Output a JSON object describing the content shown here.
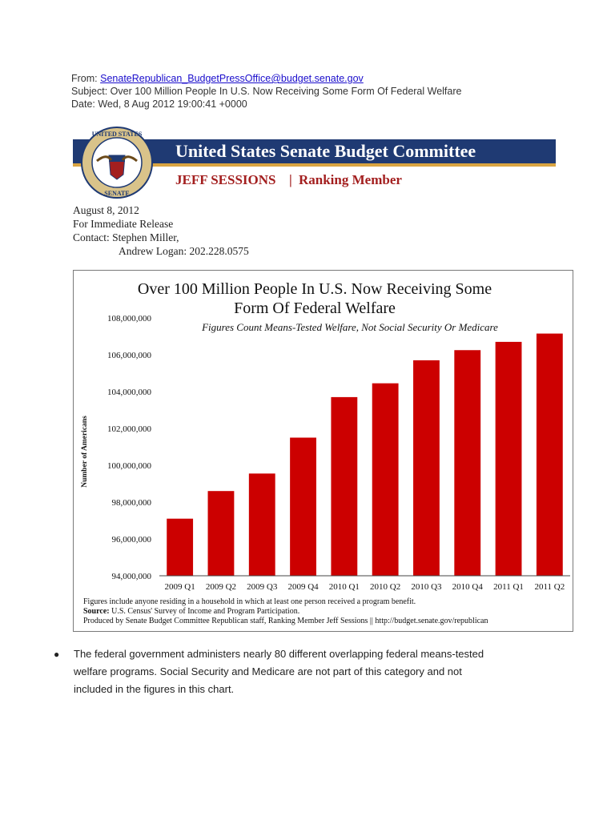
{
  "email": {
    "from_label": "From:",
    "from_address": "SenateRepublican_BudgetPressOffice@budget.senate.gov",
    "subject": "Subject: Over 100 Million People In U.S. Now Receiving Some Form Of Federal Welfare",
    "date": "Date: Wed, 8 Aug 2012 19:00:41 +0000"
  },
  "banner": {
    "title": "United States Senate Budget Committee",
    "name": "JEFF SESSIONS",
    "role": "Ranking Member",
    "seal_top": "UNITED STATES",
    "seal_bottom": "SENATE"
  },
  "release": {
    "date": "August 8, 2012",
    "note": "For Immediate Release",
    "contact_line1": "Contact:  Stephen Miller,",
    "contact_line2": "Andrew Logan: 202.228.0575"
  },
  "chart_data": {
    "type": "bar",
    "title_line1": "Over 100 Million People In U.S. Now Receiving Some",
    "title_line2": "Form Of Federal Welfare",
    "subtitle": "Figures Count Means-Tested Welfare, Not Social Security Or Medicare",
    "ylabel": "Number of Americans",
    "xlabel": "",
    "ylim": [
      94000000,
      108000000
    ],
    "yticks": [
      94000000,
      96000000,
      98000000,
      100000000,
      102000000,
      104000000,
      106000000,
      108000000
    ],
    "ytick_labels": [
      "94,000,000",
      "96,000,000",
      "98,000,000",
      "100,000,000",
      "102,000,000",
      "104,000,000",
      "106,000,000",
      "108,000,000"
    ],
    "categories": [
      "2009 Q1",
      "2009 Q2",
      "2009 Q3",
      "2009 Q4",
      "2010 Q1",
      "2010 Q2",
      "2010 Q3",
      "2010 Q4",
      "2011 Q1",
      "2011 Q2"
    ],
    "values": [
      97100000,
      98600000,
      99550000,
      101500000,
      103700000,
      104450000,
      105700000,
      106250000,
      106700000,
      107150000
    ],
    "bar_color": "#cc0000",
    "footnote1": "Figures include anyone residing in a household in which at least one person received a program benefit.",
    "footnote2_label": "Source:",
    "footnote2": " U.S. Census' Survey of Income and Program Participation.",
    "footnote3": "Produced by Senate Budget Committee Republican staff, Ranking Member Jeff Sessions || http://budget.senate.gov/republican"
  },
  "body": {
    "bullet_line1": "The federal government administers nearly 80 different overlapping federal means-tested",
    "bullet_line2": "welfare programs. Social Security and Medicare are not part of this category and not",
    "bullet_line3": "included in the figures in this chart."
  },
  "colors": {
    "banner_navy": "#1f3a73",
    "banner_gold": "#d9a441",
    "banner_red": "#a31f1f",
    "link_blue": "#1a0dcc"
  }
}
